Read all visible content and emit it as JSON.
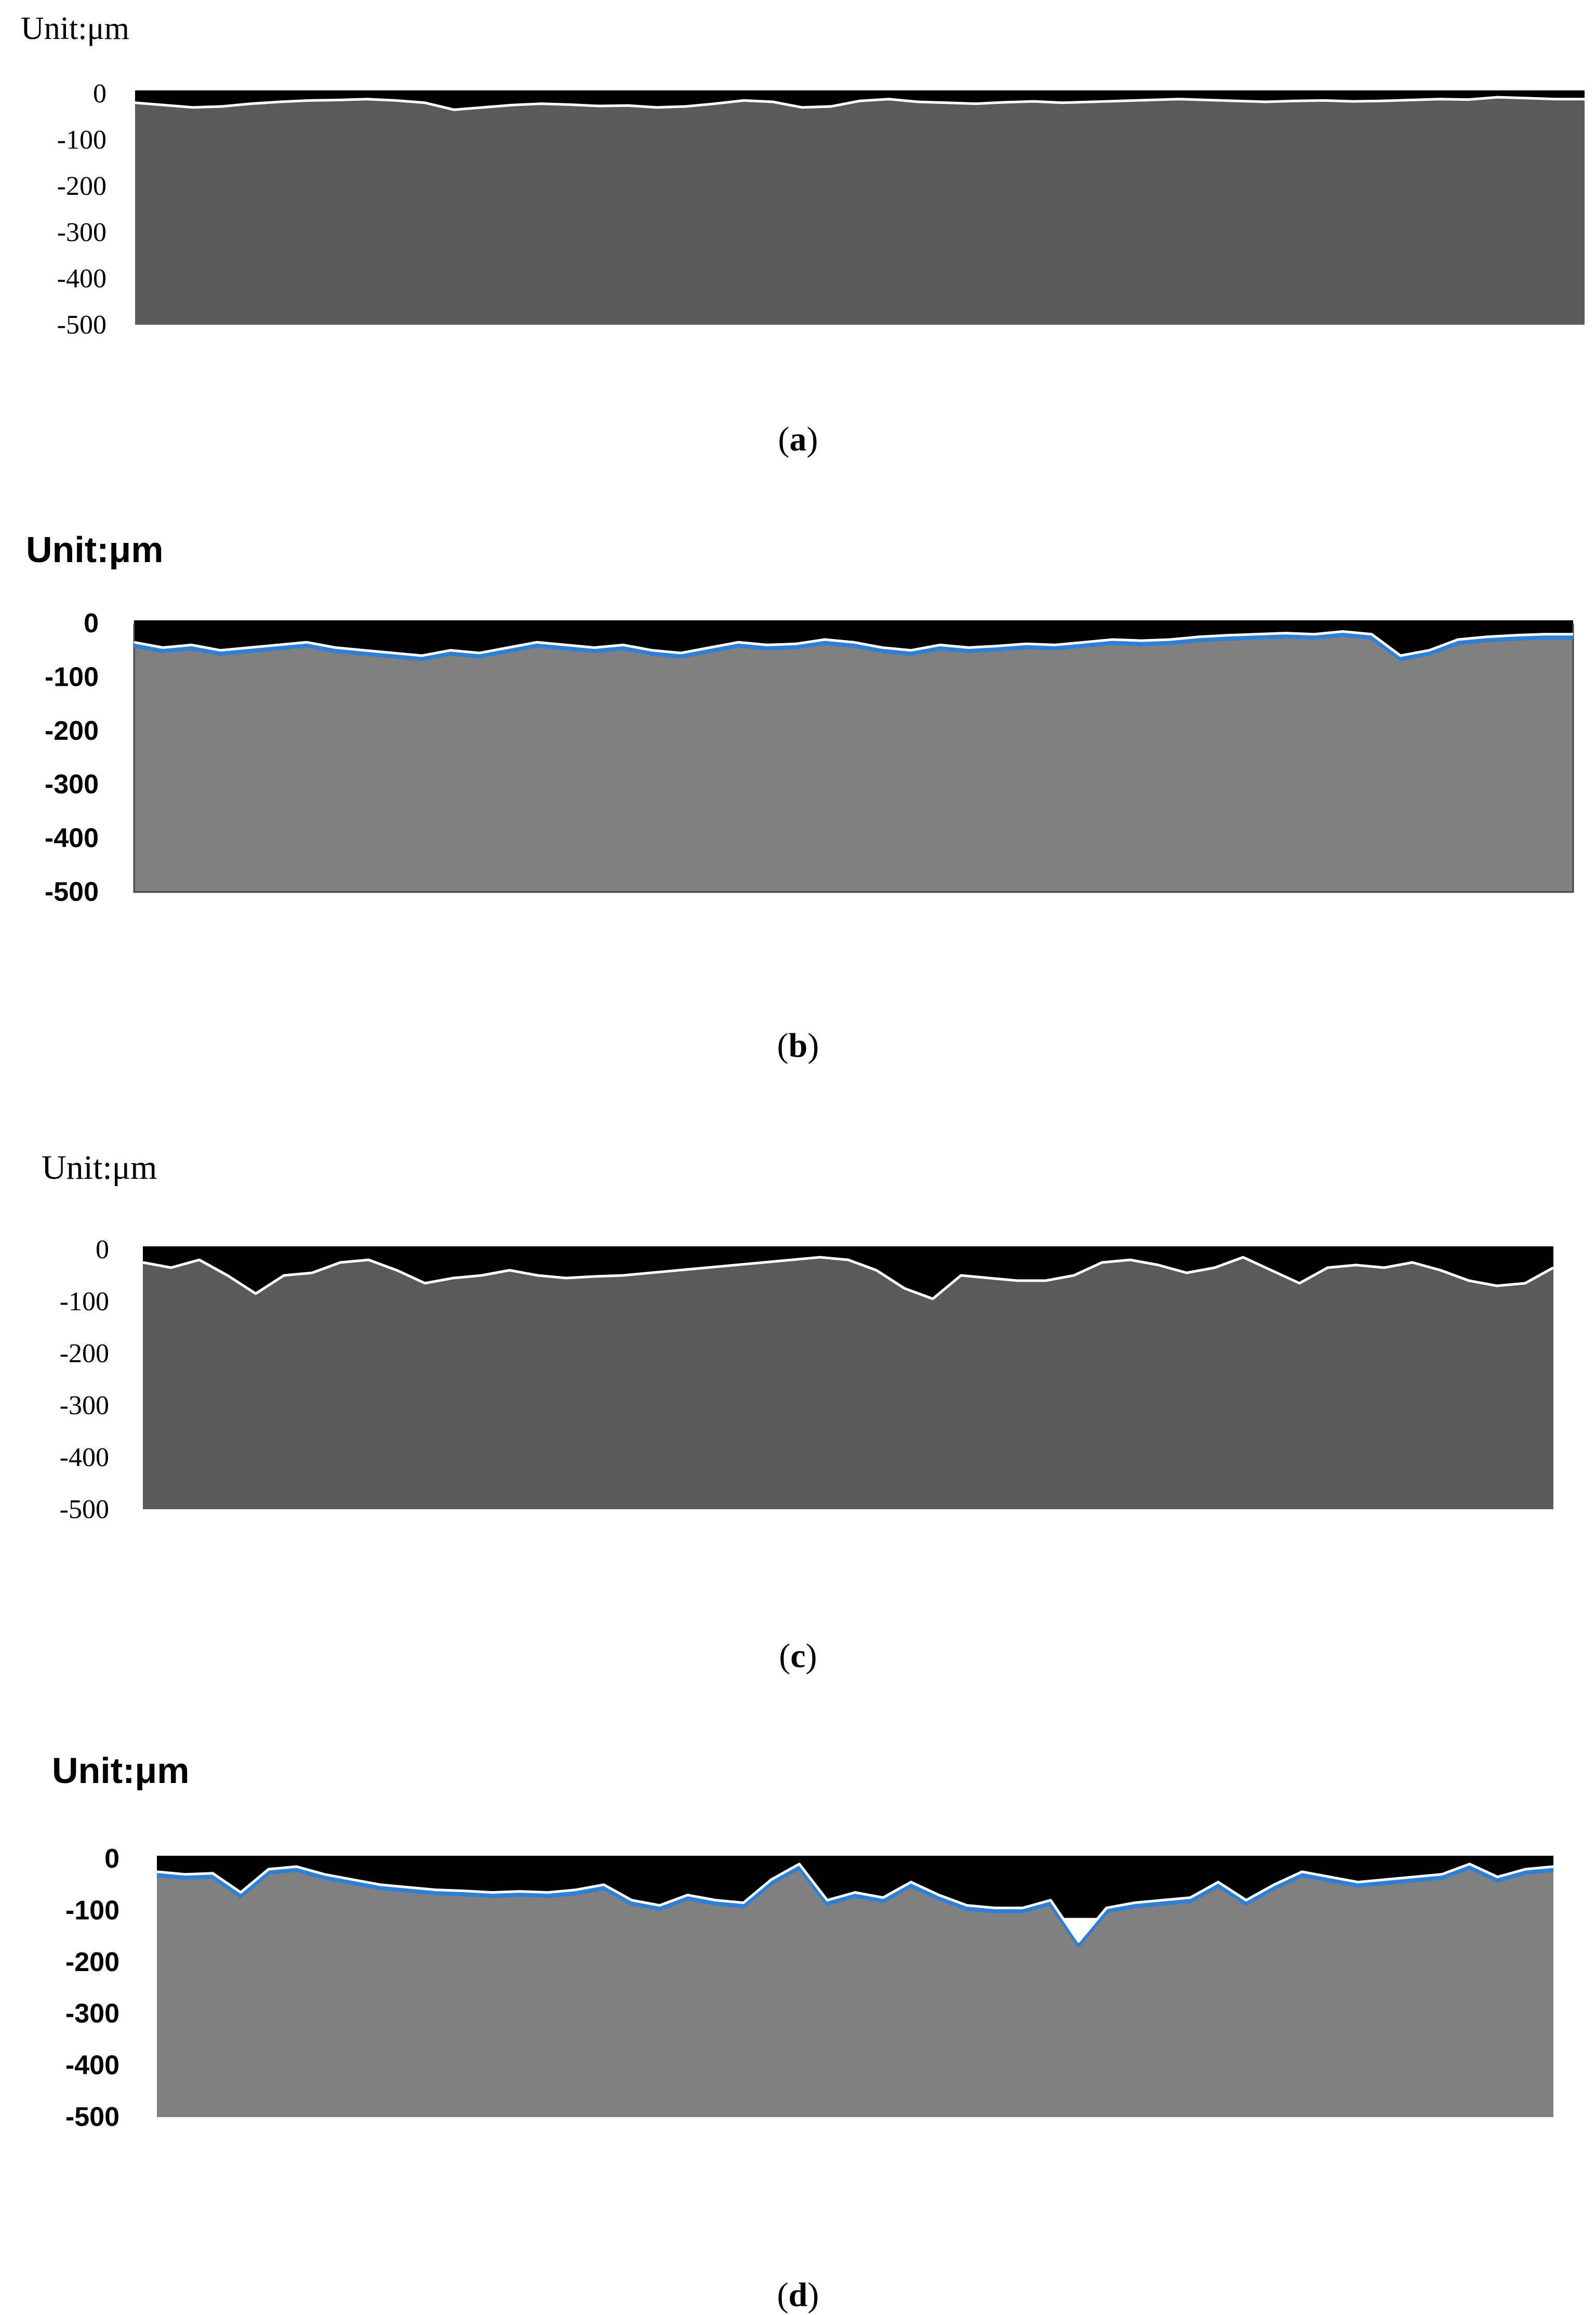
{
  "panels": [
    {
      "id": "a",
      "unit_label": "Unit:μm",
      "caption_letter": "a",
      "style": "serif",
      "colors": {
        "fill": "#5a5a5a",
        "edge": "#ffffff",
        "shadow": null,
        "border": null,
        "void": "#000000"
      }
    },
    {
      "id": "b",
      "unit_label": "Unit:μm",
      "caption_letter": "b",
      "style": "sans-bold",
      "colors": {
        "fill": "#808080",
        "edge": "#ffffff",
        "shadow": "#2f7fd4",
        "border": "#444444",
        "void": "#000000"
      }
    },
    {
      "id": "c",
      "unit_label": "Unit:μm",
      "caption_letter": "c",
      "style": "serif",
      "colors": {
        "fill": "#5a5a5a",
        "edge": "#ffffff",
        "shadow": null,
        "border": null,
        "void": "#000000"
      }
    },
    {
      "id": "d",
      "unit_label": "Unit:μm",
      "caption_letter": "d",
      "style": "sans-bold",
      "colors": {
        "fill": "#808080",
        "edge": "#ffffff",
        "shadow": "#2f7fd4",
        "border": null,
        "void": "#000000"
      }
    }
  ],
  "chart_data": [
    {
      "type": "area",
      "panel": "a",
      "ylim": [
        -500,
        0
      ],
      "y_ticks": [
        "0",
        "-100",
        "-200",
        "-300",
        "-400",
        "-500"
      ],
      "grid": false,
      "x": [
        0,
        2,
        4,
        6,
        8,
        10,
        12,
        14,
        16,
        18,
        20,
        22,
        24,
        26,
        28,
        30,
        32,
        34,
        36,
        38,
        40,
        42,
        44,
        46,
        48,
        50,
        52,
        54,
        56,
        58,
        60,
        62,
        64,
        66,
        68,
        70,
        72,
        74,
        76,
        78,
        80,
        82,
        84,
        86,
        88,
        90,
        92,
        94,
        96,
        98,
        100
      ],
      "y": [
        -20,
        -25,
        -30,
        -28,
        -22,
        -18,
        -15,
        -14,
        -12,
        -15,
        -20,
        -35,
        -30,
        -25,
        -22,
        -24,
        -27,
        -26,
        -30,
        -28,
        -22,
        -15,
        -18,
        -30,
        -28,
        -16,
        -12,
        -18,
        -20,
        -22,
        -19,
        -17,
        -20,
        -18,
        -16,
        -14,
        -12,
        -14,
        -16,
        -18,
        -16,
        -15,
        -17,
        -16,
        -14,
        -12,
        -13,
        -8,
        -10,
        -12,
        -12
      ]
    },
    {
      "type": "area",
      "panel": "b",
      "ylim": [
        -500,
        0
      ],
      "y_ticks": [
        "0",
        "-100",
        "-200",
        "-300",
        "-400",
        "-500"
      ],
      "grid": false,
      "x": [
        0,
        2,
        4,
        6,
        8,
        10,
        12,
        14,
        16,
        18,
        20,
        22,
        24,
        26,
        28,
        30,
        32,
        34,
        36,
        38,
        40,
        42,
        44,
        46,
        48,
        50,
        52,
        54,
        56,
        58,
        60,
        62,
        64,
        66,
        68,
        70,
        72,
        74,
        76,
        78,
        80,
        82,
        84,
        86,
        88,
        90,
        92,
        94,
        96,
        98,
        100
      ],
      "y": [
        -35,
        -45,
        -40,
        -50,
        -45,
        -40,
        -35,
        -45,
        -50,
        -55,
        -60,
        -50,
        -55,
        -45,
        -35,
        -40,
        -45,
        -40,
        -50,
        -55,
        -45,
        -35,
        -40,
        -38,
        -30,
        -35,
        -45,
        -50,
        -40,
        -45,
        -42,
        -38,
        -40,
        -35,
        -30,
        -32,
        -30,
        -25,
        -22,
        -20,
        -18,
        -20,
        -15,
        -20,
        -60,
        -50,
        -30,
        -25,
        -22,
        -20,
        -20
      ]
    },
    {
      "type": "area",
      "panel": "c",
      "ylim": [
        -500,
        0
      ],
      "y_ticks": [
        "0",
        "-100",
        "-200",
        "-300",
        "-400",
        "-500"
      ],
      "grid": false,
      "x": [
        0,
        2,
        4,
        6,
        8,
        10,
        12,
        14,
        16,
        18,
        20,
        22,
        24,
        26,
        28,
        30,
        32,
        34,
        36,
        38,
        40,
        42,
        44,
        46,
        48,
        50,
        52,
        54,
        56,
        58,
        60,
        62,
        64,
        66,
        68,
        70,
        72,
        74,
        76,
        78,
        80,
        82,
        84,
        86,
        88,
        90,
        92,
        94,
        96,
        98,
        100
      ],
      "y": [
        -25,
        -35,
        -20,
        -50,
        -85,
        -50,
        -45,
        -25,
        -20,
        -40,
        -65,
        -55,
        -50,
        -40,
        -50,
        -55,
        -52,
        -50,
        -45,
        -40,
        -35,
        -30,
        -25,
        -20,
        -15,
        -20,
        -40,
        -75,
        -95,
        -50,
        -55,
        -60,
        -60,
        -50,
        -25,
        -20,
        -30,
        -45,
        -35,
        -15,
        -40,
        -65,
        -35,
        -30,
        -35,
        -25,
        -40,
        -60,
        -70,
        -65,
        -35
      ]
    },
    {
      "type": "area",
      "panel": "d",
      "ylim": [
        -500,
        0
      ],
      "y_ticks": [
        "0",
        "-100",
        "-200",
        "-300",
        "-400",
        "-500"
      ],
      "grid": false,
      "x": [
        0,
        2,
        4,
        6,
        8,
        10,
        12,
        14,
        16,
        18,
        20,
        22,
        24,
        26,
        28,
        30,
        32,
        34,
        36,
        38,
        40,
        42,
        44,
        46,
        48,
        50,
        52,
        54,
        56,
        58,
        60,
        62,
        64,
        66,
        68,
        70,
        72,
        74,
        76,
        78,
        80,
        82,
        84,
        86,
        88,
        90,
        92,
        94,
        96,
        98,
        100
      ],
      "y": [
        -25,
        -30,
        -28,
        -65,
        -20,
        -15,
        -30,
        -40,
        -50,
        -55,
        -60,
        -62,
        -65,
        -63,
        -65,
        -60,
        -50,
        -80,
        -90,
        -70,
        -80,
        -85,
        -40,
        -10,
        -80,
        -65,
        -75,
        -45,
        -70,
        -90,
        -95,
        -95,
        -80,
        -160,
        -95,
        -85,
        -80,
        -75,
        -45,
        -80,
        -50,
        -25,
        -35,
        -45,
        -40,
        -35,
        -30,
        -10,
        -35,
        -20,
        -15
      ]
    }
  ]
}
